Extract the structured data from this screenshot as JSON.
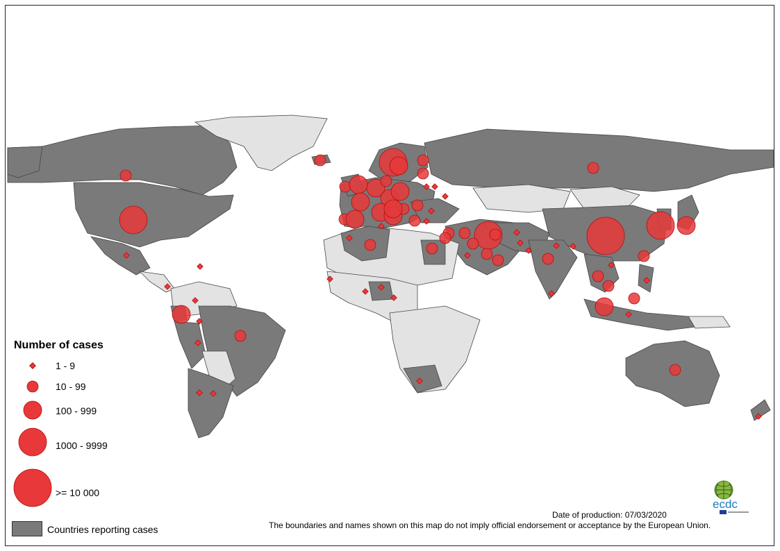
{
  "legend": {
    "title": "Number of cases",
    "sizes": [
      {
        "label": "1 - 9",
        "symbol": "diamond"
      },
      {
        "label": "10 - 99",
        "symbol": "circle"
      },
      {
        "label": "100 - 999",
        "symbol": "circle"
      },
      {
        "label": "1000 - 9999",
        "symbol": "circle"
      },
      {
        "label": ">= 10 000",
        "symbol": "circle"
      }
    ],
    "countries_label": "Countries reporting cases"
  },
  "footer": {
    "date": "Date of production: 07/03/2020",
    "disclaimer": "The boundaries and names shown on this map do not imply official endorsement or acceptance by the European Union."
  },
  "logo": {
    "text": "ecdc",
    "icon": "ecdc-globe-logo"
  },
  "colors": {
    "reporting_country": "#7a7a7a",
    "non_reporting_country": "#e3e3e3",
    "case_symbol": "#e8383a",
    "symbol_border": "#b01010",
    "ocean": "#ffffff"
  }
}
